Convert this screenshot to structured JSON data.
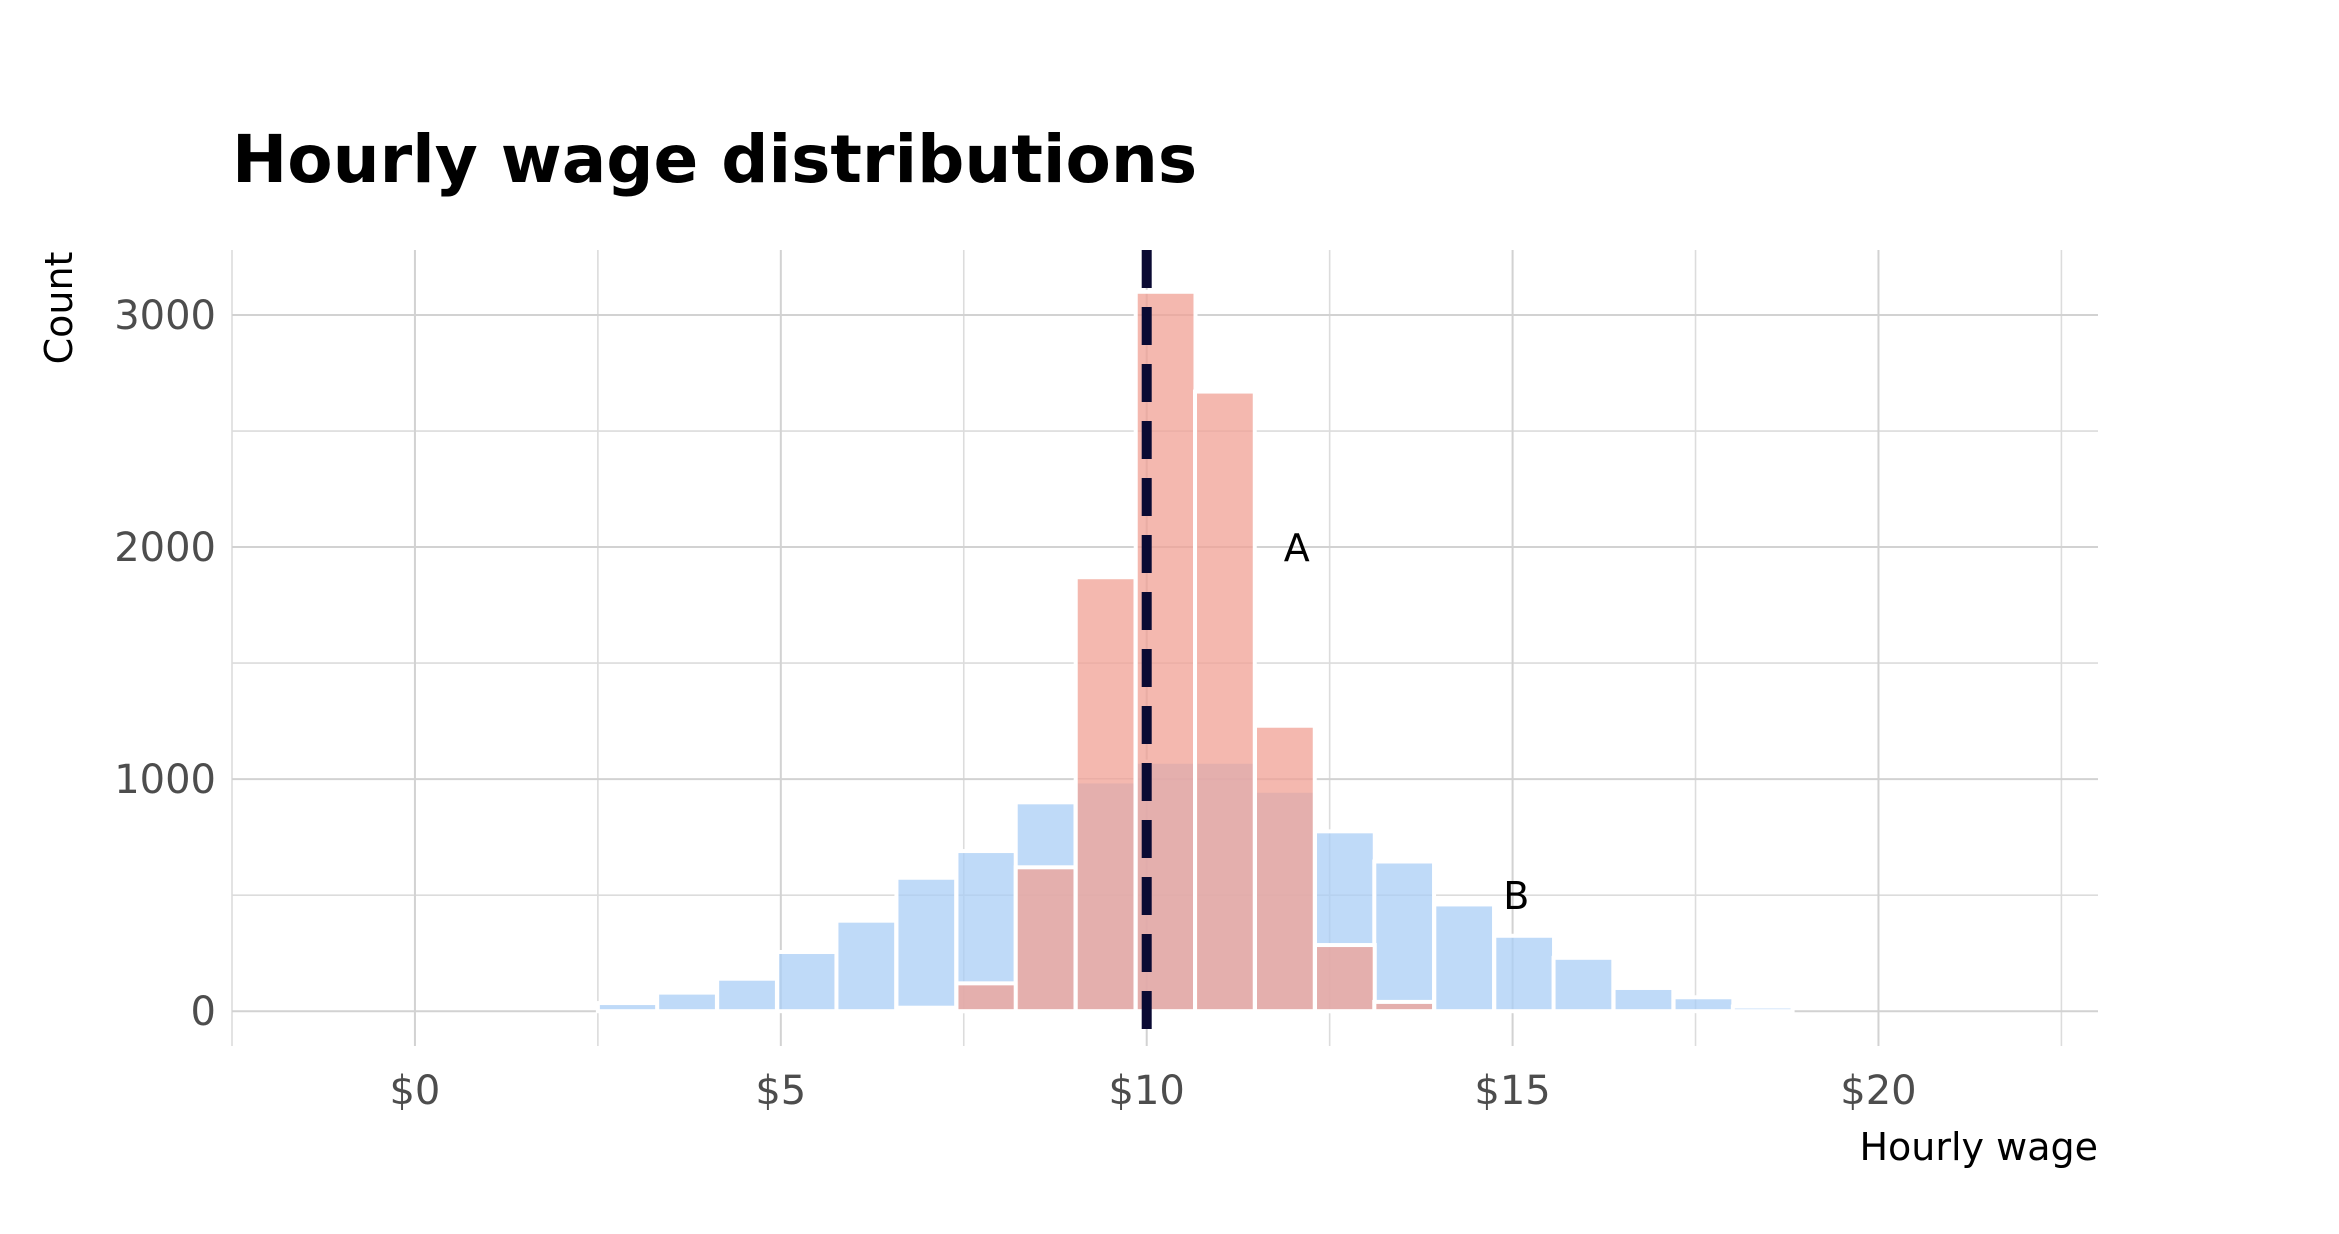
{
  "chart_data": {
    "type": "bar",
    "title": "Hourly wage distributions",
    "xlabel": "Hourly wage",
    "ylabel": "Count",
    "xlim": [
      -2.5,
      23
    ],
    "ylim": [
      -150,
      3280
    ],
    "x_major_ticks": [
      0,
      5,
      10,
      15,
      20
    ],
    "x_minor_ticks": [
      -2.5,
      2.5,
      7.5,
      12.5,
      17.5,
      22.5
    ],
    "x_tick_labels": [
      "$0",
      "$5",
      "$10",
      "$15",
      "$20"
    ],
    "y_major_ticks": [
      0,
      1000,
      2000,
      3000
    ],
    "y_minor_ticks": [
      500,
      1500,
      2500
    ],
    "y_tick_labels": [
      "0",
      "1000",
      "2000",
      "3000"
    ],
    "grid": true,
    "bin_width": 0.8166,
    "vline": {
      "x": 10,
      "style": "dashed",
      "color": "#0a0a33"
    },
    "series": [
      {
        "color": "#a9cdf5",
        "bins": [
          {
            "x": 2.5,
            "y": 35
          },
          {
            "x": 3.31,
            "y": 80
          },
          {
            "x": 4.13,
            "y": 140
          },
          {
            "x": 4.95,
            "y": 255
          },
          {
            "x": 5.76,
            "y": 390
          },
          {
            "x": 6.58,
            "y": 575
          },
          {
            "x": 7.4,
            "y": 690
          },
          {
            "x": 8.21,
            "y": 900
          },
          {
            "x": 9.03,
            "y": 990
          },
          {
            "x": 9.85,
            "y": 1075
          },
          {
            "x": 10.66,
            "y": 1075
          },
          {
            "x": 11.48,
            "y": 950
          },
          {
            "x": 12.3,
            "y": 775
          },
          {
            "x": 13.11,
            "y": 645
          },
          {
            "x": 13.93,
            "y": 460
          },
          {
            "x": 14.75,
            "y": 325
          },
          {
            "x": 15.56,
            "y": 230
          },
          {
            "x": 16.38,
            "y": 100
          },
          {
            "x": 17.2,
            "y": 60
          },
          {
            "x": 18.01,
            "y": 20
          }
        ]
      },
      {
        "color": "#f0a094",
        "bins": [
          {
            "x": 6.58,
            "y": 15
          },
          {
            "x": 7.4,
            "y": 120
          },
          {
            "x": 8.21,
            "y": 620
          },
          {
            "x": 9.03,
            "y": 1870
          },
          {
            "x": 9.85,
            "y": 3100
          },
          {
            "x": 10.66,
            "y": 2670
          },
          {
            "x": 11.48,
            "y": 1230
          },
          {
            "x": 12.3,
            "y": 285
          },
          {
            "x": 13.11,
            "y": 40
          }
        ]
      }
    ],
    "annotations": [
      {
        "text": "A",
        "x": 12.05,
        "y": 2000
      },
      {
        "text": "B",
        "x": 15.05,
        "y": 500
      }
    ]
  }
}
